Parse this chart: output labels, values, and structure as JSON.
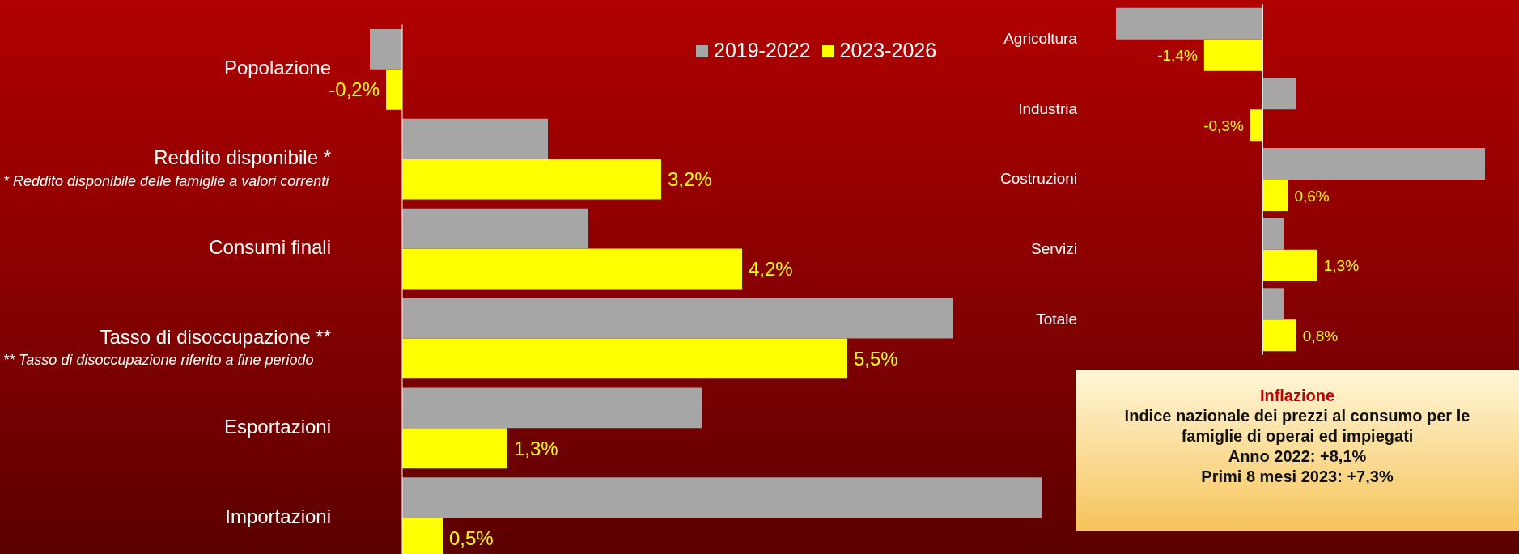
{
  "chart_data": [
    {
      "type": "bar",
      "orientation": "horizontal",
      "categories": [
        "Popolazione",
        "Reddito disponibile *",
        "Consumi finali",
        "Tasso di disoccupazione **",
        "Esportazioni",
        "Importazioni"
      ],
      "tick_labels": "y",
      "legend": "top right",
      "series": [
        {
          "name": "2019-2022",
          "color": "#a6a6a6",
          "values": [
            -0.4,
            1.8,
            2.3,
            6.8,
            3.7,
            7.9
          ]
        },
        {
          "name": "2023-2026",
          "color": "#ffff00",
          "values": [
            -0.2,
            3.2,
            4.2,
            5.5,
            1.3,
            0.5
          ],
          "value_labels": [
            "-0,2%",
            "3,2%",
            "4,2%",
            "5,5%",
            "1,3%",
            "0,5%"
          ]
        }
      ],
      "annotations": [
        "* Reddito disponibile delle famiglie a valori correnti",
        "** Tasso di disoccupazione riferito a fine periodo"
      ]
    },
    {
      "type": "bar",
      "orientation": "horizontal",
      "categories": [
        "Agricoltura",
        "Industria",
        "Costruzioni",
        "Servizi",
        "Totale"
      ],
      "tick_labels": "y",
      "series": [
        {
          "color": "#a6a6a6",
          "values": [
            -3.5,
            0.8,
            5.3,
            0.5,
            0.5
          ]
        },
        {
          "color": "#ffff00",
          "values": [
            -1.4,
            -0.3,
            0.6,
            1.3,
            0.8
          ],
          "value_labels": [
            "-1,4%",
            "-0,3%",
            "0,6%",
            "1,3%",
            "0,8%"
          ]
        }
      ]
    },
    {
      "type": "other",
      "title": "Inflazione",
      "annotations": [
        "Indice nazionale dei prezzi al consumo per le famiglie di operai ed impiegati",
        "Anno 2022: +8,1%",
        "Primi 8 mesi 2023: +7,3%"
      ]
    }
  ]
}
